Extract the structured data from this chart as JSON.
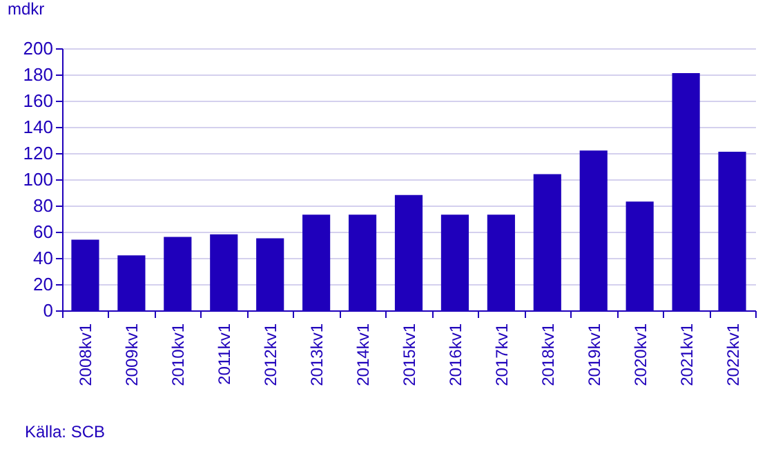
{
  "chart_data": {
    "type": "bar",
    "ylabel": "mdkr",
    "categories": [
      "2008kv1",
      "2009kv1",
      "2010kv1",
      "2011kv1",
      "2012kv1",
      "2013kv1",
      "2014kv1",
      "2015kv1",
      "2016kv1",
      "2017kv1",
      "2018kv1",
      "2019kv1",
      "2020kv1",
      "2021kv1",
      "2022kv1"
    ],
    "values": [
      54,
      42,
      56,
      58,
      55,
      73,
      73,
      88,
      73,
      73,
      104,
      122,
      83,
      181,
      121
    ],
    "color": "#1f00bb",
    "ylim": [
      0,
      200
    ],
    "yticks": [
      0,
      20,
      40,
      60,
      80,
      100,
      120,
      140,
      160,
      180,
      200
    ],
    "grid": "y",
    "annotations": [
      "Källa: SCB"
    ]
  }
}
